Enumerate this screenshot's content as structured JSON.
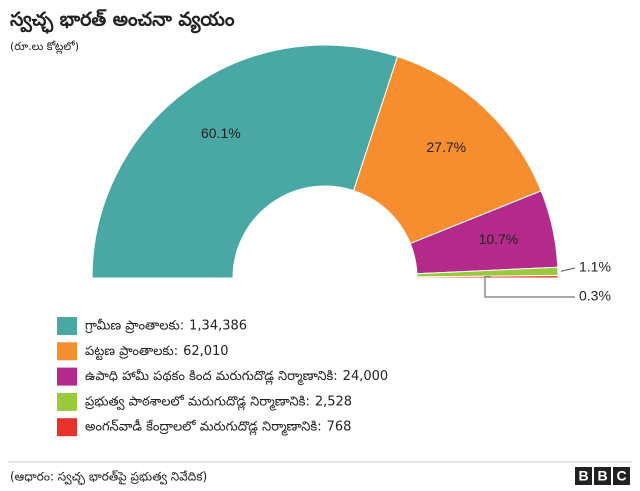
{
  "chart_data": {
    "type": "half-donut",
    "title": "స్వచ్ఛ భారత్ అంచనా వ్యయం",
    "subtitle": "(రూ.లు కోట్లలో)",
    "categories": [
      "గ్రామీణ ప్రాంతాలకు:",
      "పట్టణ ప్రాంతాలకు:",
      "ఉపాధి హామీ పథకం కింద మరుగుదొడ్ల నిర్మాణానికి:",
      "ప్రభుత్వ పాఠశాలలో మరుగుదొడ్ల నిర్మాణానికి:",
      "అంగన్‌వాడీ కేంద్రాలలో మరుగుదొడ్ల నిర్మాణానికి:"
    ],
    "values": [
      134386,
      62010,
      24000,
      2528,
      768
    ],
    "value_labels": [
      "1,34,386",
      "62,010",
      "24,000",
      "2,528",
      "768"
    ],
    "percent_labels": [
      "60.1%",
      "27.7%",
      "10.7%",
      "1.1%",
      "0.3%"
    ],
    "colors": [
      "#4aa8a4",
      "#f68d2e",
      "#b32a8b",
      "#9ac93c",
      "#e8312a"
    ],
    "source": "(ఆధారం: స్వచ్ఛ భారత్‌పై ప్రభుత్వ నివేదిక)",
    "logo": [
      "B",
      "B",
      "C"
    ]
  }
}
